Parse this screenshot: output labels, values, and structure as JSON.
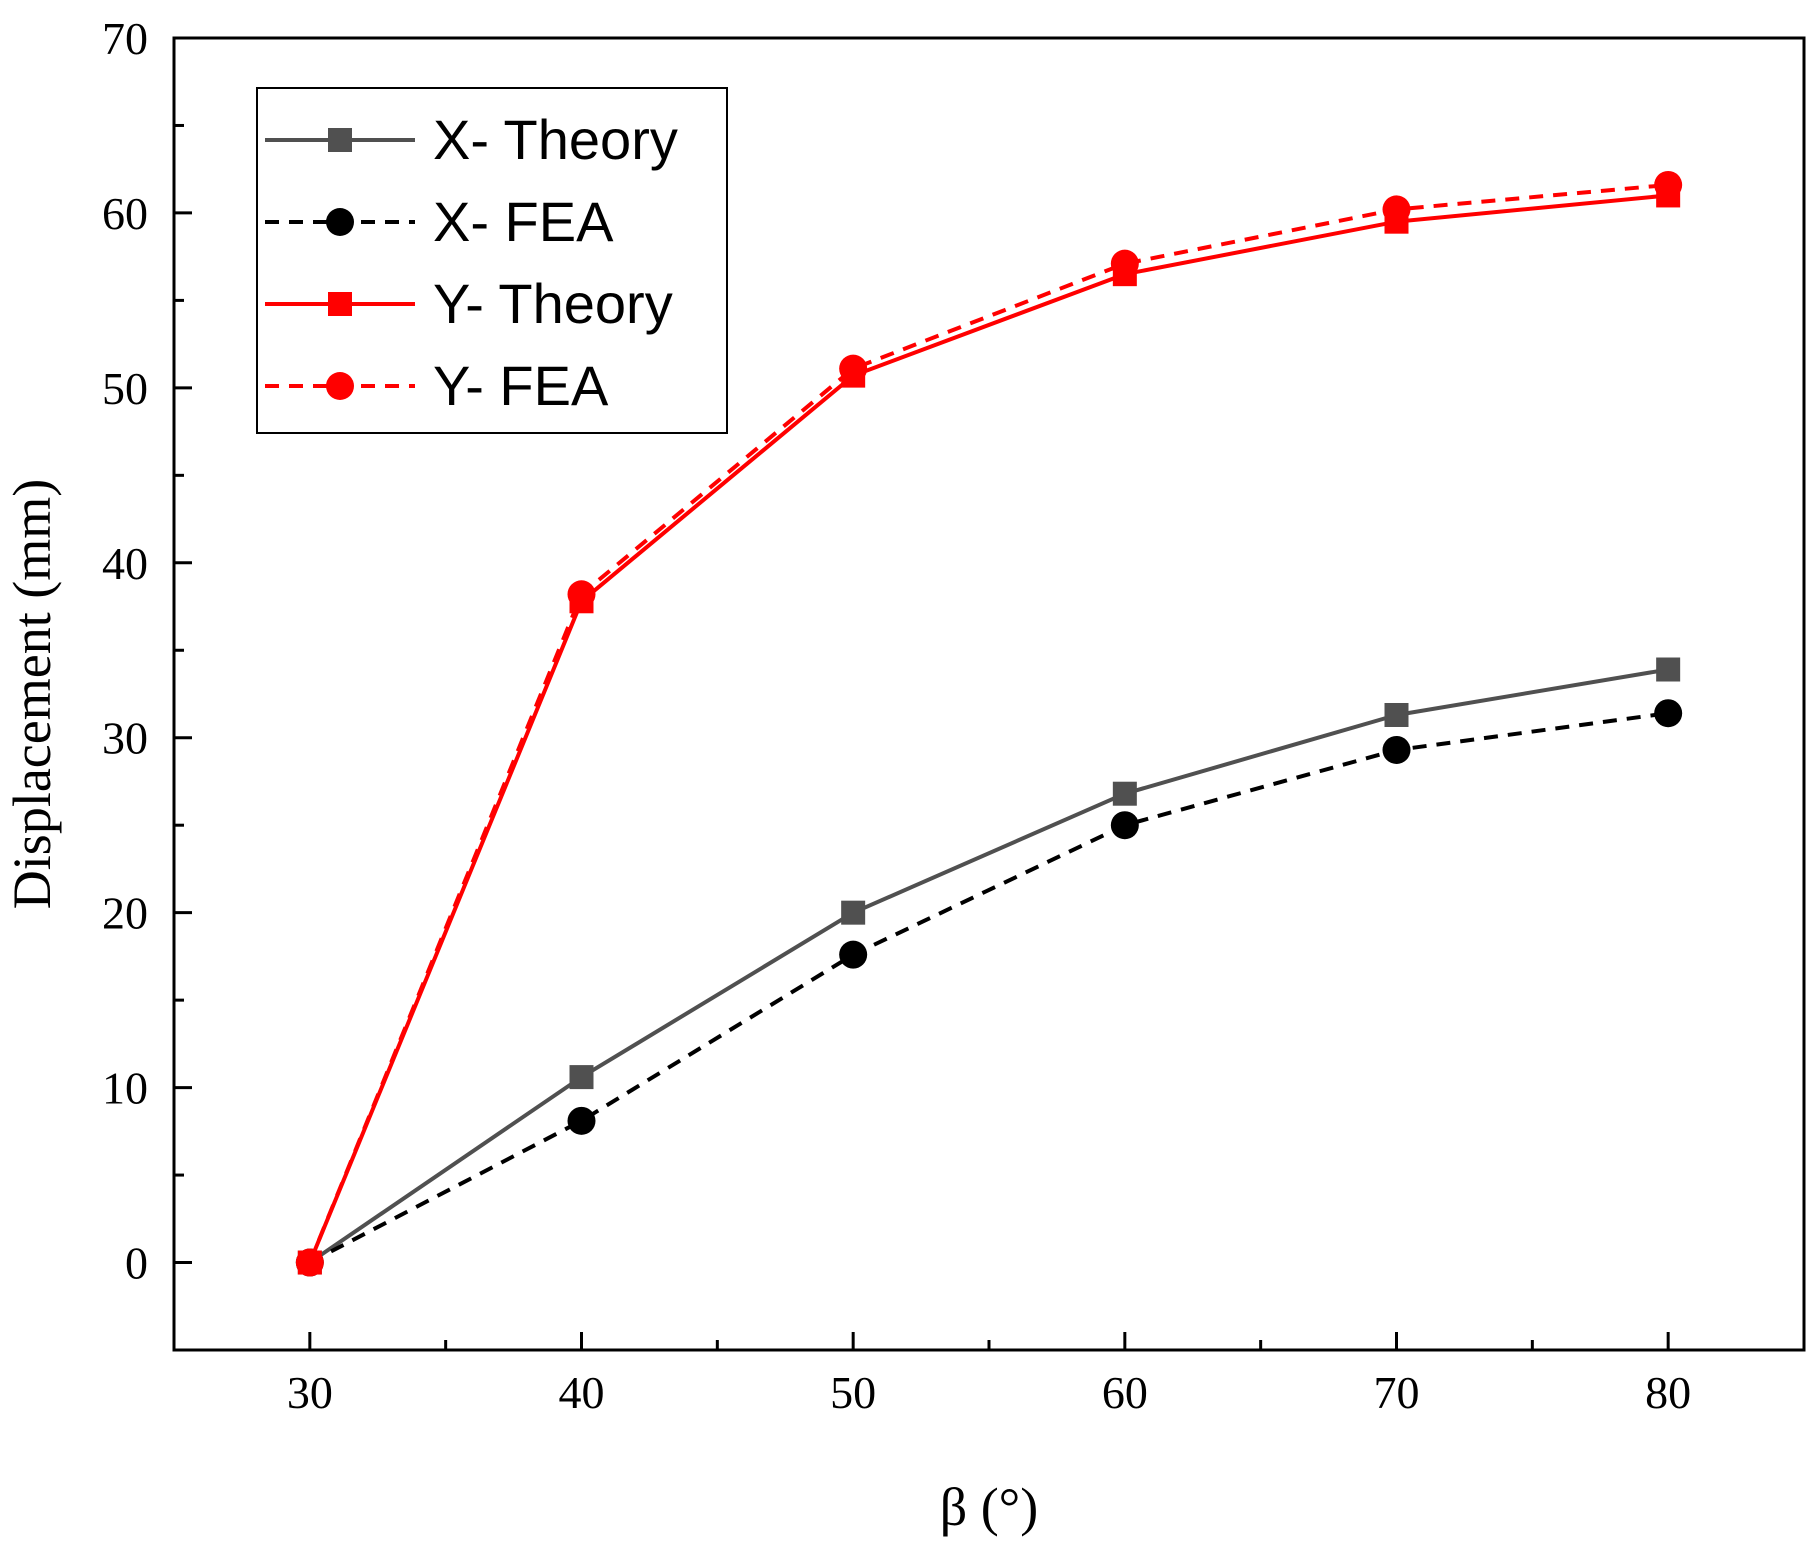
{
  "chart_data": {
    "type": "line",
    "title": "",
    "xlabel": "β (°)",
    "ylabel": "Displacement (mm)",
    "xlim": [
      25,
      85
    ],
    "ylim": [
      -5,
      70
    ],
    "x_ticks": [
      30,
      40,
      50,
      60,
      70,
      80
    ],
    "y_ticks": [
      0,
      10,
      20,
      30,
      40,
      50,
      60,
      70
    ],
    "x_tick_labels": [
      "30",
      "40",
      "50",
      "60",
      "70",
      "80"
    ],
    "y_tick_labels": [
      "0",
      "10",
      "20",
      "30",
      "40",
      "50",
      "60",
      "70"
    ],
    "legend_position": "top-left",
    "x": [
      30,
      40,
      50,
      60,
      70,
      80
    ],
    "series": [
      {
        "name": "X- Theory",
        "values": [
          0,
          10.6,
          20.0,
          26.8,
          31.3,
          33.9
        ],
        "color": "#505050",
        "dash": "solid",
        "marker": "square"
      },
      {
        "name": "X- FEA",
        "values": [
          0,
          8.1,
          17.6,
          25.0,
          29.3,
          31.4
        ],
        "color": "#000000",
        "dash": "dashed",
        "marker": "circle"
      },
      {
        "name": "Y- Theory",
        "values": [
          0,
          37.8,
          50.7,
          56.5,
          59.5,
          61.0
        ],
        "color": "#ff0000",
        "dash": "solid",
        "marker": "square"
      },
      {
        "name": "Y- FEA",
        "values": [
          0,
          38.2,
          51.1,
          57.1,
          60.2,
          61.6
        ],
        "color": "#ff0000",
        "dash": "dashed",
        "marker": "circle"
      }
    ]
  }
}
